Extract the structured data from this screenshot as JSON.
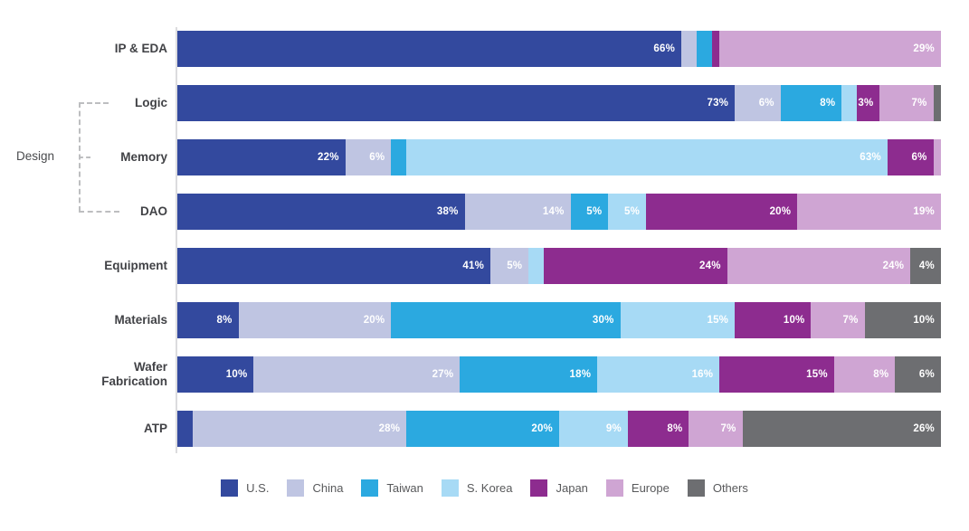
{
  "chart_data": {
    "type": "bar",
    "stacked": true,
    "orientation": "horizontal",
    "title": "",
    "xlabel": "",
    "ylabel": "",
    "xlim": [
      0,
      100
    ],
    "grid": false,
    "legend_position": "bottom",
    "label_format": "{v}%",
    "label_min_value": 3,
    "categories": [
      "IP & EDA",
      "Logic",
      "Memory",
      "DAO",
      "Equipment",
      "Materials",
      "Wafer Fabrication",
      "ATP"
    ],
    "series": [
      {
        "name": "U.S.",
        "color": "#33499e",
        "values": [
          66,
          73,
          22,
          38,
          41,
          8,
          10,
          2
        ]
      },
      {
        "name": "China",
        "color": "#bfc5e2",
        "values": [
          2,
          6,
          6,
          14,
          5,
          20,
          27,
          28
        ]
      },
      {
        "name": "Taiwan",
        "color": "#2ba9e0",
        "values": [
          2,
          8,
          2,
          5,
          0,
          30,
          18,
          20
        ]
      },
      {
        "name": "S. Korea",
        "color": "#a7daf5",
        "values": [
          0,
          2,
          63,
          5,
          2,
          15,
          16,
          9
        ]
      },
      {
        "name": "Japan",
        "color": "#8d2c8f",
        "values": [
          1,
          3,
          6,
          20,
          24,
          10,
          15,
          8
        ]
      },
      {
        "name": "Europe",
        "color": "#cfa5d3",
        "values": [
          29,
          7,
          1,
          19,
          24,
          7,
          8,
          7
        ]
      },
      {
        "name": "Others",
        "color": "#6d6e71",
        "values": [
          0,
          1,
          0,
          0,
          4,
          10,
          6,
          26
        ]
      }
    ],
    "visible_segment_labels": {
      "IP & EDA": [
        "66%",
        "29%"
      ],
      "Logic": [
        "73%",
        "6%",
        "8%",
        "3%",
        "7%"
      ],
      "Memory": [
        "22%",
        "6%",
        "63%",
        "6%"
      ],
      "DAO": [
        "38%",
        "14%",
        "5%",
        "5%",
        "20%",
        "19%"
      ],
      "Equipment": [
        "41%",
        "5%",
        "24%",
        "24%",
        "4%"
      ],
      "Materials": [
        "8%",
        "20%",
        "30%",
        "15%",
        "10%",
        "7%",
        "10%"
      ],
      "Wafer Fabrication": [
        "10%",
        "27%",
        "18%",
        "16%",
        "15%",
        "8%",
        "6%"
      ],
      "ATP": [
        "28%",
        "20%",
        "9%",
        "8%",
        "7%",
        "26%"
      ]
    },
    "group_annotation": {
      "label": "Design",
      "members": [
        "Logic",
        "Memory",
        "DAO"
      ]
    },
    "legend_entries": [
      "U.S.",
      "China",
      "Taiwan",
      "S. Korea",
      "Japan",
      "Europe",
      "Others"
    ]
  }
}
